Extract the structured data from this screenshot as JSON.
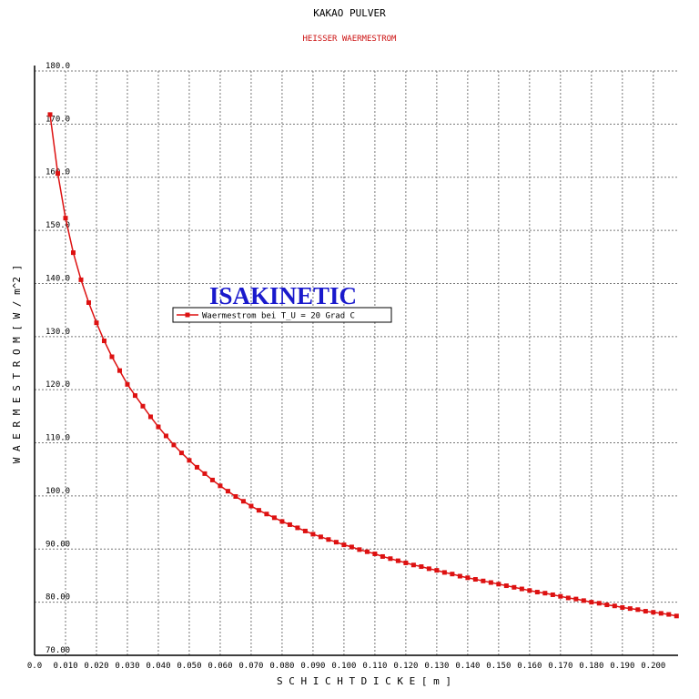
{
  "chart_data": {
    "type": "line",
    "title": "KAKAO PULVER",
    "subtitle": "HEISSER WAERMESTROM",
    "annotation": "ISAKINETIC",
    "x_label": "S C H I C H T D I C K E   [ m ]",
    "y_label": "W A E R M E S T R O M   [ W / m^2 ]",
    "grid": true,
    "xlim": [
      0,
      0.208
    ],
    "ylim": [
      70,
      180
    ],
    "xticks": [
      {
        "value": 0,
        "label": "0.0"
      },
      {
        "value": 0.01,
        "label": "0.010"
      },
      {
        "value": 0.02,
        "label": "0.020"
      },
      {
        "value": 0.03,
        "label": "0.030"
      },
      {
        "value": 0.04,
        "label": "0.040"
      },
      {
        "value": 0.05,
        "label": "0.050"
      },
      {
        "value": 0.06,
        "label": "0.060"
      },
      {
        "value": 0.07,
        "label": "0.070"
      },
      {
        "value": 0.08,
        "label": "0.080"
      },
      {
        "value": 0.09,
        "label": "0.090"
      },
      {
        "value": 0.1,
        "label": "0.100"
      },
      {
        "value": 0.11,
        "label": "0.110"
      },
      {
        "value": 0.12,
        "label": "0.120"
      },
      {
        "value": 0.13,
        "label": "0.130"
      },
      {
        "value": 0.14,
        "label": "0.140"
      },
      {
        "value": 0.15,
        "label": "0.150"
      },
      {
        "value": 0.16,
        "label": "0.160"
      },
      {
        "value": 0.17,
        "label": "0.170"
      },
      {
        "value": 0.18,
        "label": "0.180"
      },
      {
        "value": 0.19,
        "label": "0.190"
      },
      {
        "value": 0.2,
        "label": "0.200"
      }
    ],
    "yticks": [
      {
        "value": 70,
        "label": "70.00"
      },
      {
        "value": 80,
        "label": "80.00"
      },
      {
        "value": 90,
        "label": "90.00"
      },
      {
        "value": 100,
        "label": "100.0"
      },
      {
        "value": 110,
        "label": "110.0"
      },
      {
        "value": 120,
        "label": "120.0"
      },
      {
        "value": 130,
        "label": "130.0"
      },
      {
        "value": 140,
        "label": "140.0"
      },
      {
        "value": 150,
        "label": "150.0"
      },
      {
        "value": 160,
        "label": "160.0"
      },
      {
        "value": 170,
        "label": "170.0"
      },
      {
        "value": 180,
        "label": "180.0"
      }
    ],
    "x": [
      0.005,
      0.0075,
      0.01,
      0.0125,
      0.015,
      0.0175,
      0.02,
      0.0225,
      0.025,
      0.0275,
      0.03,
      0.0325,
      0.035,
      0.0375,
      0.04,
      0.0425,
      0.045,
      0.0475,
      0.05,
      0.0525,
      0.055,
      0.0575,
      0.06,
      0.0625,
      0.065,
      0.0675,
      0.07,
      0.0725,
      0.075,
      0.0775,
      0.08,
      0.0825,
      0.085,
      0.0875,
      0.09,
      0.0925,
      0.095,
      0.0975,
      0.1,
      0.1025,
      0.105,
      0.1075,
      0.11,
      0.1125,
      0.115,
      0.1175,
      0.12,
      0.1225,
      0.125,
      0.1275,
      0.13,
      0.1325,
      0.135,
      0.1375,
      0.14,
      0.1425,
      0.145,
      0.1475,
      0.15,
      0.1525,
      0.155,
      0.1575,
      0.16,
      0.1625,
      0.165,
      0.1675,
      0.17,
      0.1725,
      0.175,
      0.1775,
      0.18,
      0.1825,
      0.185,
      0.1875,
      0.19,
      0.1925,
      0.195,
      0.1975,
      0.2,
      0.2025,
      0.205,
      0.2075
    ],
    "series": [
      {
        "name": "Waermestrom bei T_U = 20 Grad C",
        "color": "#dd1111",
        "values": [
          171.8,
          160.7,
          152.3,
          145.8,
          140.7,
          136.4,
          132.6,
          129.2,
          126.2,
          123.6,
          121.0,
          118.9,
          116.9,
          114.9,
          113.0,
          111.3,
          109.6,
          108.1,
          106.7,
          105.4,
          104.2,
          103.0,
          101.9,
          100.9,
          99.9,
          99.0,
          98.1,
          97.3,
          96.6,
          95.9,
          95.2,
          94.6,
          94.0,
          93.4,
          92.8,
          92.3,
          91.8,
          91.3,
          90.8,
          90.4,
          89.9,
          89.5,
          89.1,
          88.6,
          88.2,
          87.8,
          87.4,
          87.0,
          86.7,
          86.3,
          86.0,
          85.6,
          85.3,
          84.9,
          84.6,
          84.3,
          84.0,
          83.7,
          83.4,
          83.1,
          82.8,
          82.5,
          82.2,
          81.9,
          81.7,
          81.4,
          81.1,
          80.8,
          80.6,
          80.3,
          80.0,
          79.8,
          79.5,
          79.3,
          79.0,
          78.8,
          78.6,
          78.3,
          78.1,
          77.9,
          77.7,
          77.4
        ]
      }
    ]
  }
}
